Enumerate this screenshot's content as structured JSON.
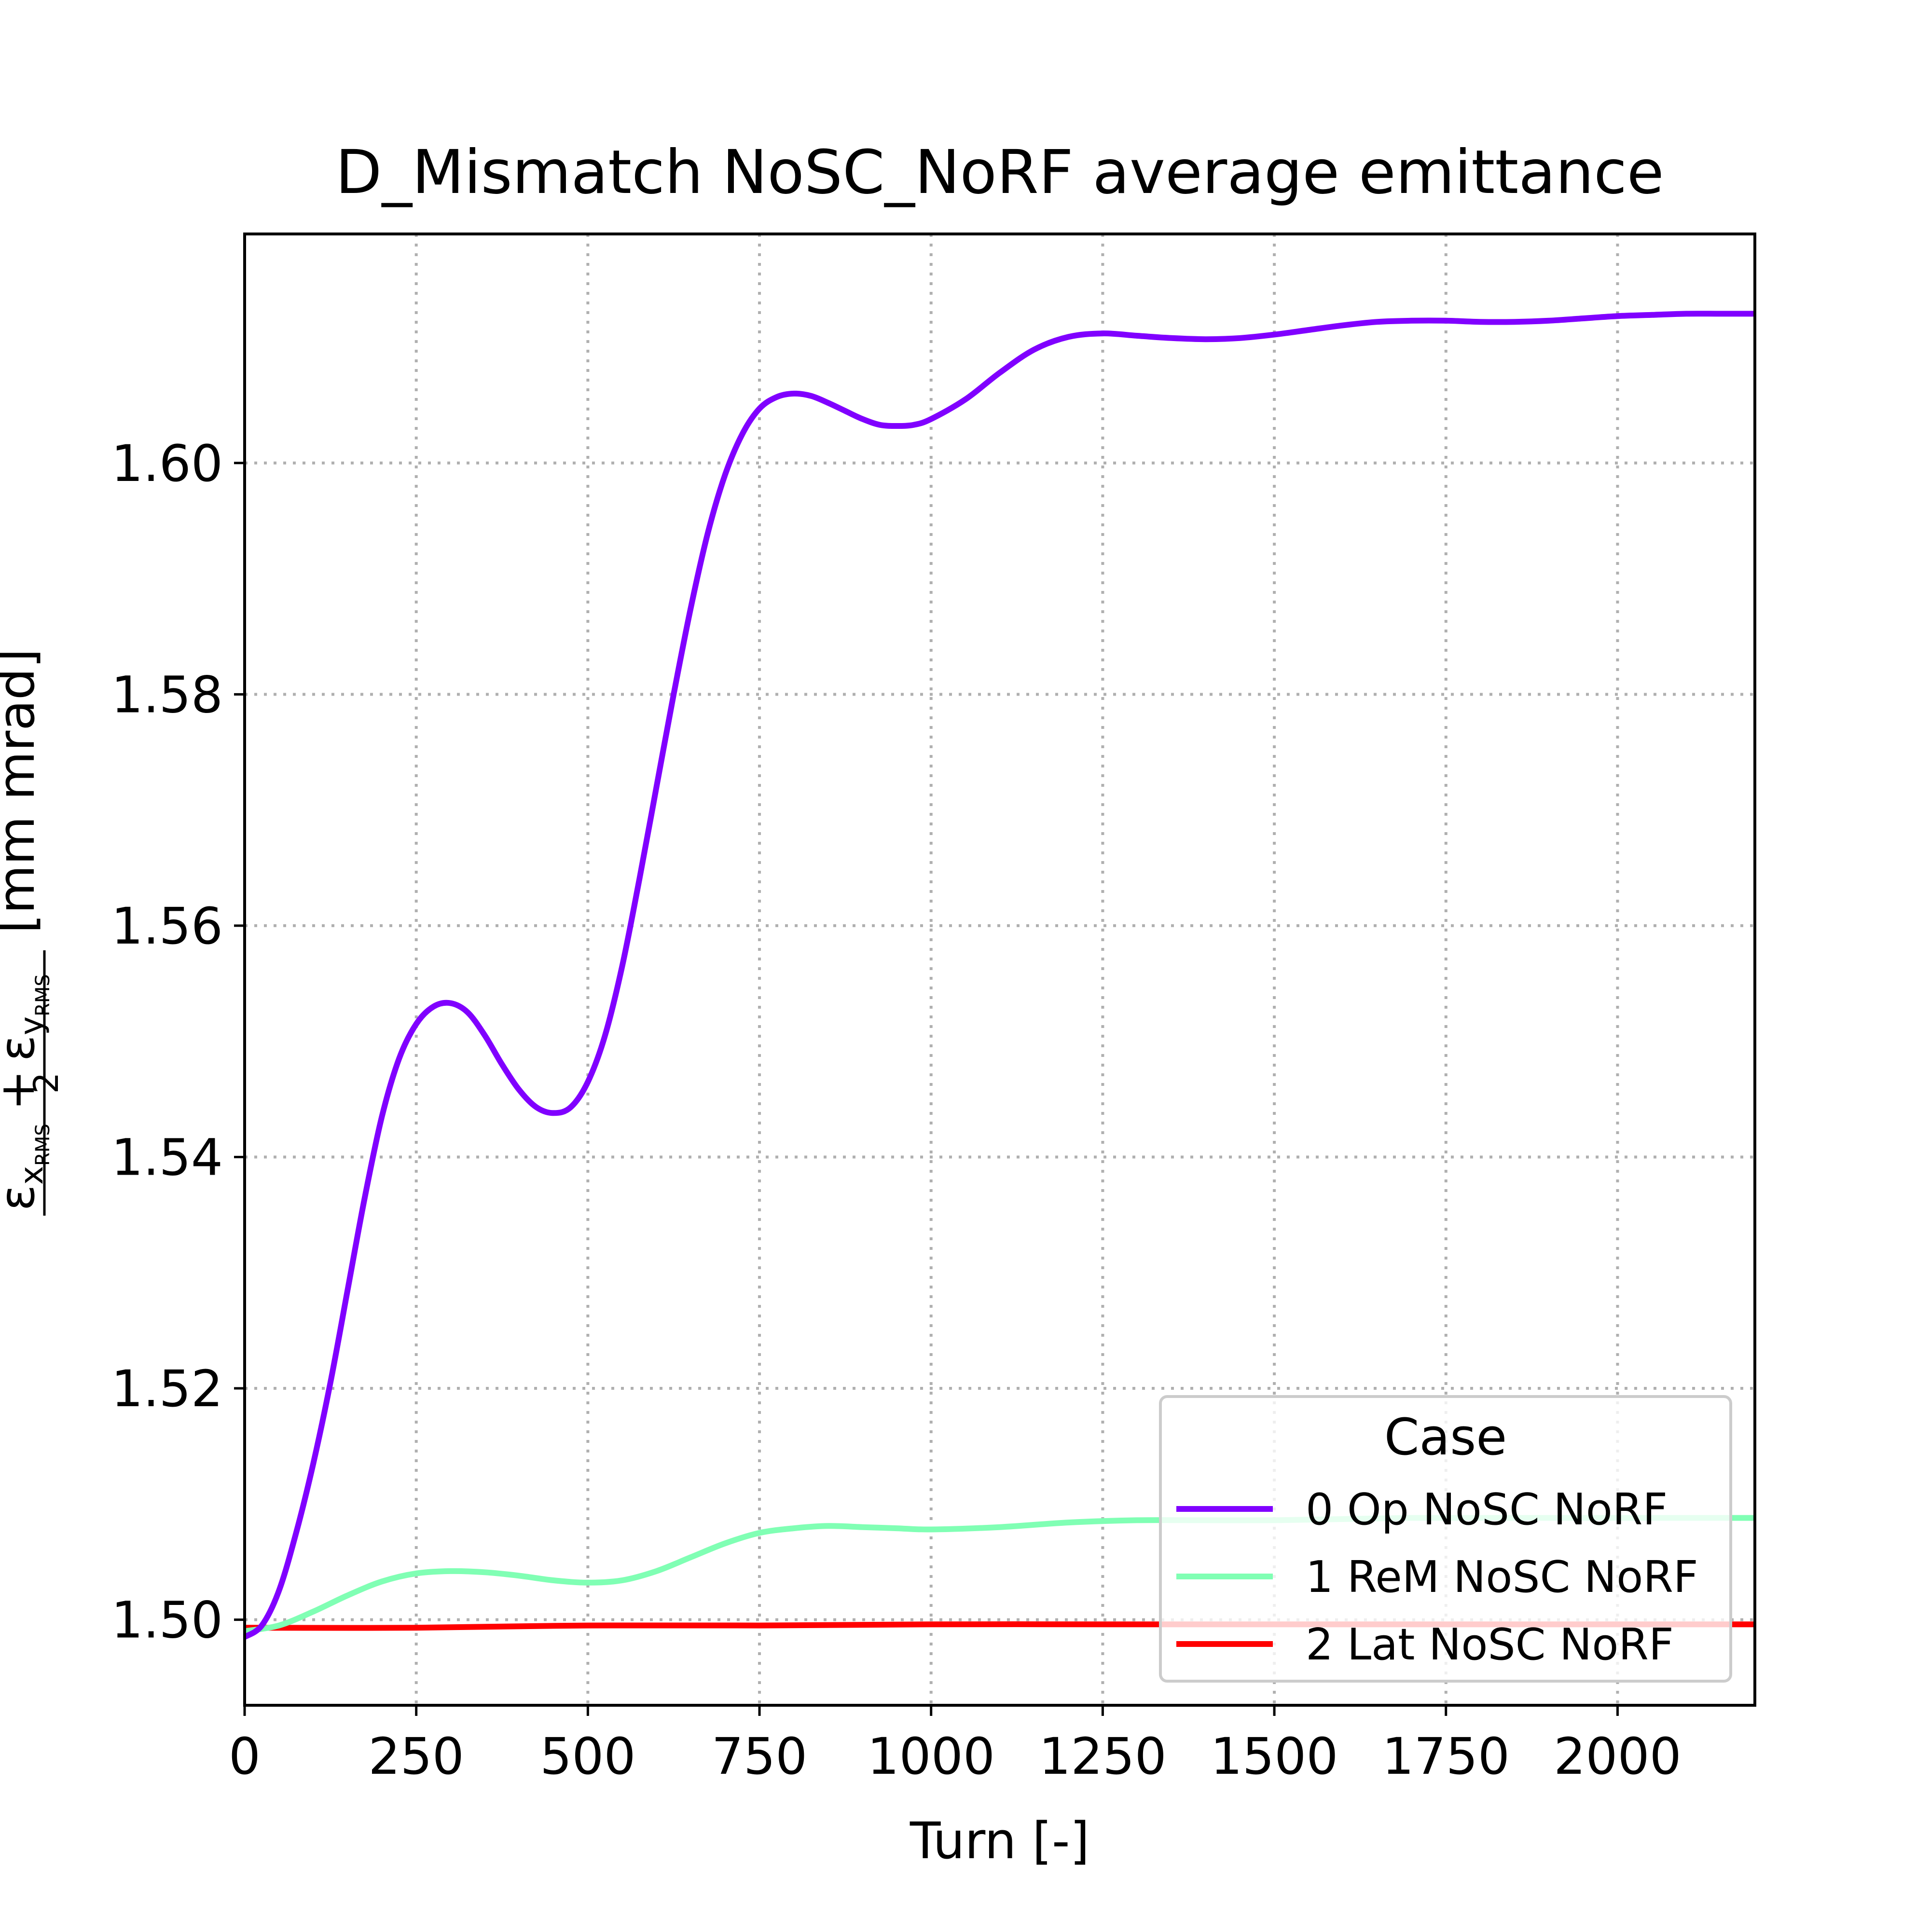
{
  "chart_data": {
    "type": "line",
    "title": "D_Mismatch NoSC_NoRF average emittance",
    "xlabel": "Turn [-]",
    "ylabel": "(εx_RMS + εy_RMS) / 2 [mm mrad]",
    "ylabel_parts": {
      "num_left": "ε",
      "num_left_sub": "x",
      "num_left_subsub": "RMS",
      "plus": "+",
      "num_right": "ε",
      "num_right_sub": "y",
      "num_right_subsub": "RMS",
      "denominator": "2",
      "unit": "[mm mrad]"
    },
    "xlim": [
      0,
      2200
    ],
    "ylim": [
      1.4926,
      1.6198
    ],
    "xticks": [
      0,
      250,
      500,
      750,
      1000,
      1250,
      1500,
      1750,
      2000
    ],
    "xtick_labels": [
      "0",
      "250",
      "500",
      "750",
      "1000",
      "1250",
      "1500",
      "1750",
      "2000"
    ],
    "yticks": [
      1.5,
      1.52,
      1.54,
      1.56,
      1.58,
      1.6
    ],
    "ytick_labels": [
      "1.50",
      "1.52",
      "1.54",
      "1.56",
      "1.58",
      "1.60"
    ],
    "grid": true,
    "legend": {
      "title": "Case",
      "placement": "lower-right"
    },
    "series": [
      {
        "name": "0 Op NoSC NoRF",
        "color": "#8000ff",
        "x": [
          0,
          25,
          50,
          75,
          100,
          125,
          150,
          175,
          200,
          225,
          250,
          275,
          300,
          325,
          350,
          375,
          400,
          425,
          450,
          475,
          500,
          525,
          550,
          575,
          600,
          625,
          650,
          675,
          700,
          725,
          750,
          775,
          800,
          825,
          850,
          875,
          900,
          925,
          950,
          975,
          1000,
          1050,
          1100,
          1150,
          1200,
          1250,
          1300,
          1350,
          1400,
          1450,
          1500,
          1550,
          1600,
          1650,
          1700,
          1750,
          1800,
          1850,
          1900,
          1950,
          2000,
          2050,
          2100,
          2150,
          2200
        ],
        "y": [
          1.4985,
          1.4995,
          1.5025,
          1.5075,
          1.5135,
          1.5205,
          1.5285,
          1.5365,
          1.5435,
          1.5485,
          1.5515,
          1.553,
          1.5533,
          1.5525,
          1.5505,
          1.548,
          1.5458,
          1.5443,
          1.5438,
          1.5443,
          1.5465,
          1.5505,
          1.5565,
          1.564,
          1.572,
          1.58,
          1.5875,
          1.594,
          1.599,
          1.6025,
          1.6047,
          1.6057,
          1.606,
          1.6058,
          1.6052,
          1.6045,
          1.6038,
          1.6033,
          1.6032,
          1.6033,
          1.6038,
          1.6055,
          1.6078,
          1.6098,
          1.6109,
          1.6112,
          1.611,
          1.6108,
          1.6107,
          1.6108,
          1.6111,
          1.6115,
          1.6119,
          1.6122,
          1.6123,
          1.6123,
          1.6122,
          1.6122,
          1.6123,
          1.6125,
          1.6127,
          1.6128,
          1.6129,
          1.6129,
          1.6129
        ]
      },
      {
        "name": "1 ReM NoSC NoRF",
        "color": "#80ffb4",
        "x": [
          0,
          50,
          100,
          150,
          200,
          250,
          300,
          350,
          400,
          450,
          500,
          550,
          600,
          650,
          700,
          750,
          800,
          850,
          900,
          950,
          1000,
          1100,
          1200,
          1300,
          1400,
          1500,
          1600,
          1700,
          1800,
          1900,
          2000,
          2100,
          2200
        ],
        "y": [
          1.499,
          1.4995,
          1.5007,
          1.5021,
          1.5033,
          1.504,
          1.5042,
          1.5041,
          1.5038,
          1.5034,
          1.5032,
          1.5034,
          1.5042,
          1.5054,
          1.5066,
          1.5075,
          1.5079,
          1.5081,
          1.508,
          1.5079,
          1.5078,
          1.508,
          1.5084,
          1.5086,
          1.5086,
          1.5086,
          1.5087,
          1.5088,
          1.5088,
          1.5088,
          1.5088,
          1.5088,
          1.5088
        ]
      },
      {
        "name": "2 Lat NoSC NoRF",
        "color": "#ff0000",
        "x": [
          0,
          250,
          500,
          750,
          1000,
          1250,
          1500,
          1750,
          2000,
          2200
        ],
        "y": [
          1.4993,
          1.4993,
          1.4995,
          1.4995,
          1.4996,
          1.4996,
          1.4996,
          1.4996,
          1.4996,
          1.4996
        ]
      }
    ]
  }
}
